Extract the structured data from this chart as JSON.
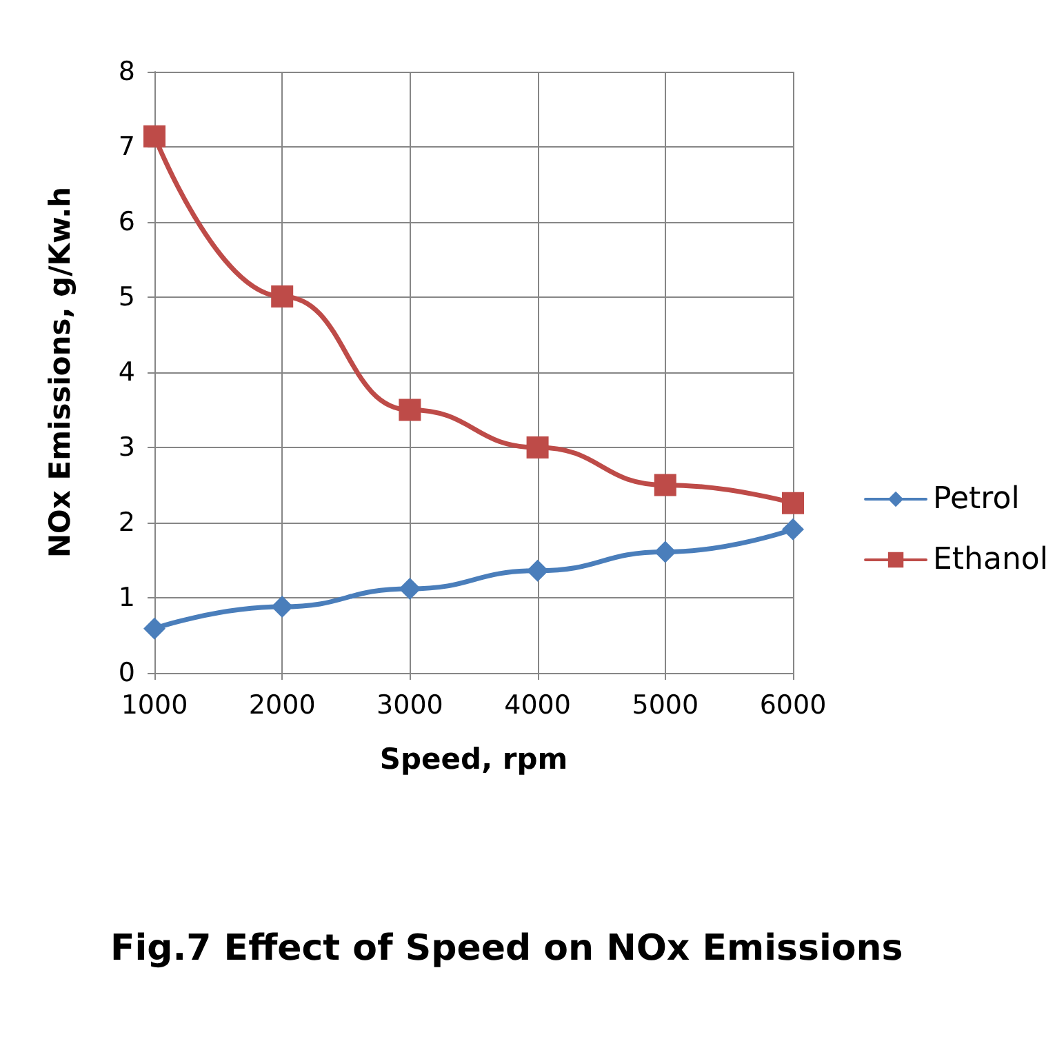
{
  "chart_data": {
    "type": "line",
    "title": "Fig.7 Effect of Speed on NOx Emissions",
    "xlabel": "Speed, rpm",
    "ylabel": "NOx Emissions, g/Kw.h",
    "x": [
      1000,
      2000,
      3000,
      4000,
      5000,
      6000
    ],
    "series": [
      {
        "name": "Petrol",
        "color": "#4a7ebb",
        "marker": "diamond",
        "values": [
          0.59,
          0.88,
          1.12,
          1.36,
          1.61,
          1.91
        ]
      },
      {
        "name": "Ethanol",
        "color": "#be4b48",
        "marker": "square",
        "values": [
          7.14,
          5.01,
          3.5,
          3.0,
          2.5,
          2.26
        ]
      }
    ],
    "xlim": [
      1000,
      6000
    ],
    "xticks": [
      1000,
      2000,
      3000,
      4000,
      5000,
      6000
    ],
    "ylim": [
      0,
      8
    ],
    "yticks": [
      0,
      1,
      2,
      3,
      4,
      5,
      6,
      7,
      8
    ],
    "grid": true,
    "legend": "right",
    "line_style": "solid"
  }
}
